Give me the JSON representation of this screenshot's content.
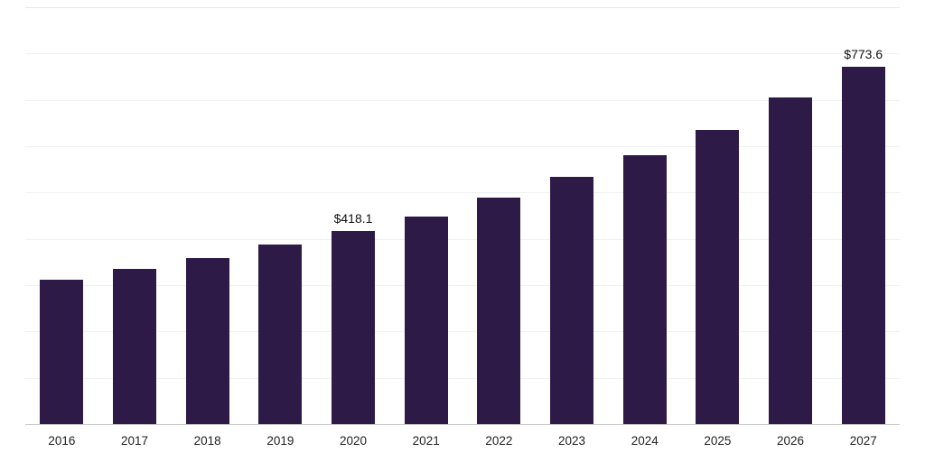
{
  "chart_data": {
    "type": "bar",
    "title": "",
    "xlabel": "",
    "ylabel": "",
    "categories": [
      "2016",
      "2017",
      "2018",
      "2019",
      "2020",
      "2021",
      "2022",
      "2023",
      "2024",
      "2025",
      "2026",
      "2027"
    ],
    "values": [
      313.8,
      336.9,
      360.0,
      388.8,
      418.1,
      450.3,
      490.8,
      535.0,
      583.1,
      637.0,
      706.4,
      773.6
    ],
    "data_labels": [
      {
        "category": "2020",
        "text": "$418.1"
      },
      {
        "category": "2027",
        "text": "$773.6"
      }
    ],
    "ylim": [
      0,
      900
    ],
    "gridline_step": 100,
    "grid": "horizontal, no y tick labels",
    "legend": "none",
    "bar_color": "#2e1a47",
    "gridline_color": "#f1f0f3",
    "axis_line_color": "#c9c9c9",
    "label_color": "#222222",
    "value_label_color": "#111111"
  }
}
